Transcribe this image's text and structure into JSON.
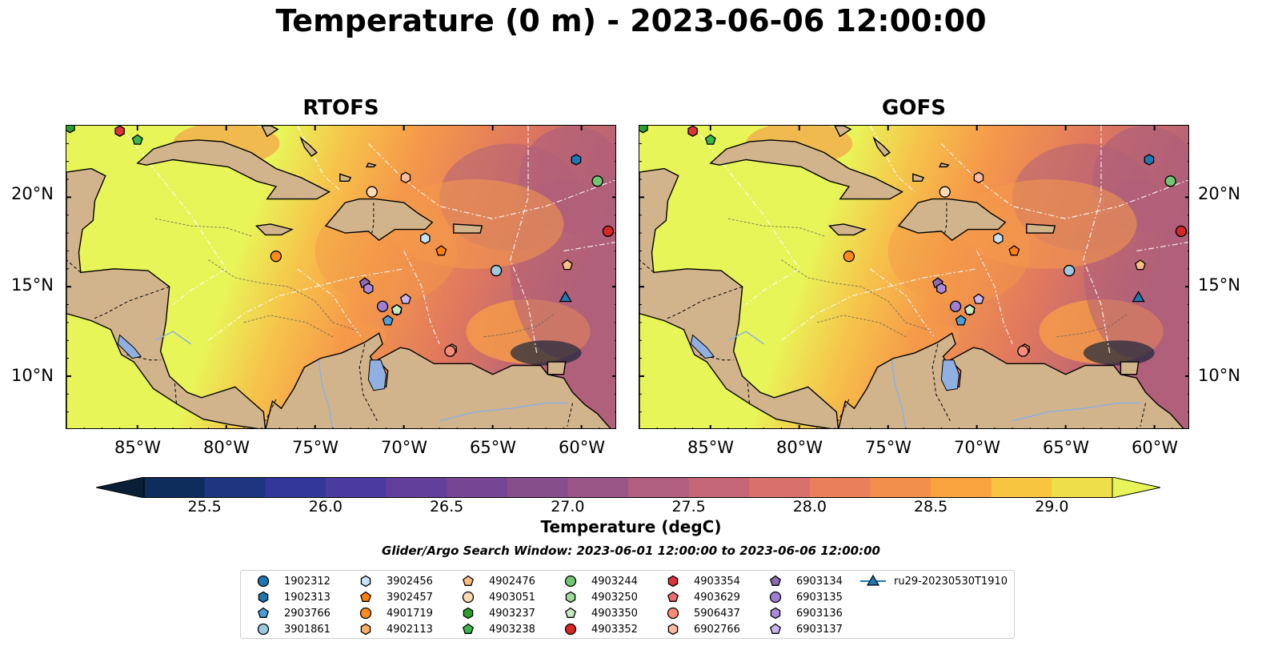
{
  "title": "Temperature (0 m) - 2023-06-06 12:00:00",
  "panels": [
    {
      "title": "RTOFS"
    },
    {
      "title": "GOFS"
    }
  ],
  "lat_labels": [
    "20°N",
    "15°N",
    "10°N"
  ],
  "lon_labels": [
    "85°W",
    "80°W",
    "75°W",
    "70°W",
    "65°W",
    "60°W"
  ],
  "map_extent": {
    "lon": [
      -89,
      -58
    ],
    "lat": [
      7,
      24
    ]
  },
  "colors": {
    "land": "#d2b48c",
    "lake": "#8fb0e0",
    "warm": "#e8f558",
    "mid": "#f59a4a",
    "cool": "#b0607a",
    "coldest": "#0a1f35"
  },
  "colorbar": {
    "label": "Temperature (degC)",
    "ticks": [
      "25.5",
      "26.0",
      "26.5",
      "27.0",
      "27.5",
      "28.0",
      "28.5",
      "29.0"
    ],
    "range": [
      25.25,
      29.25
    ],
    "colors": [
      "#0a1f35",
      "#0f2d5c",
      "#1e3580",
      "#34379a",
      "#4c3b9e",
      "#623f9a",
      "#754693",
      "#874e8c",
      "#9a5686",
      "#b05f7e",
      "#c56677",
      "#d8706c",
      "#e9805b",
      "#f38f4c",
      "#f8a33e",
      "#f7c53f",
      "#eedf48",
      "#e8f558"
    ]
  },
  "search_window": "Glider/Argo Search Window: 2023-06-01 12:00:00 to 2023-06-06 12:00:00",
  "legend": [
    {
      "label": "1902312",
      "marker": "circle",
      "color": "#1f77b4"
    },
    {
      "label": "1902313",
      "marker": "hexagon",
      "color": "#1f77b4"
    },
    {
      "label": "2903766",
      "marker": "pentagon",
      "color": "#4a9fd6"
    },
    {
      "label": "3901861",
      "marker": "circle",
      "color": "#9ecae1"
    },
    {
      "label": "3902456",
      "marker": "hexagon",
      "color": "#c6e2f5"
    },
    {
      "label": "3902457",
      "marker": "pentagon",
      "color": "#ff7f0e"
    },
    {
      "label": "4901719",
      "marker": "circle",
      "color": "#ff8c1a"
    },
    {
      "label": "4902113",
      "marker": "hexagon",
      "color": "#fdae6b"
    },
    {
      "label": "4902476",
      "marker": "pentagon",
      "color": "#fdbb84"
    },
    {
      "label": "4903051",
      "marker": "circle",
      "color": "#fdd9b5"
    },
    {
      "label": "4903237",
      "marker": "hexagon",
      "color": "#2ca02c"
    },
    {
      "label": "4903238",
      "marker": "pentagon",
      "color": "#3cb54a"
    },
    {
      "label": "4903244",
      "marker": "circle",
      "color": "#74c476"
    },
    {
      "label": "4903250",
      "marker": "hexagon",
      "color": "#a1d99b"
    },
    {
      "label": "4903350",
      "marker": "pentagon",
      "color": "#c7e9c0"
    },
    {
      "label": "4903352",
      "marker": "circle",
      "color": "#d62728"
    },
    {
      "label": "4903354",
      "marker": "hexagon",
      "color": "#e0303a"
    },
    {
      "label": "4903629",
      "marker": "pentagon",
      "color": "#ef6a6e"
    },
    {
      "label": "5906437",
      "marker": "circle",
      "color": "#fb8a7a"
    },
    {
      "label": "6902766",
      "marker": "hexagon",
      "color": "#fcbba1"
    },
    {
      "label": "6903134",
      "marker": "pentagon",
      "color": "#8c6bb1"
    },
    {
      "label": "6903135",
      "marker": "circle",
      "color": "#9e7fd1"
    },
    {
      "label": "6903136",
      "marker": "hexagon",
      "color": "#a98ad6"
    },
    {
      "label": "6903137",
      "marker": "pentagon",
      "color": "#cbb5ef"
    },
    {
      "label": "ru29-20230530T1910",
      "marker": "triangle-line",
      "color": "#1f77b4"
    }
  ],
  "floats": [
    {
      "id": "1902312",
      "lon": -64.8,
      "lat": 15.9
    },
    {
      "id": "1902313",
      "lon": -60.3,
      "lat": 22.1
    },
    {
      "id": "2903766",
      "lon": -70.9,
      "lat": 13.1
    },
    {
      "id": "3901861",
      "lon": -64.8,
      "lat": 15.9
    },
    {
      "id": "3902456",
      "lon": -68.8,
      "lat": 17.7
    },
    {
      "id": "3902457",
      "lon": -67.9,
      "lat": 17.0
    },
    {
      "id": "4901719",
      "lon": -77.2,
      "lat": 16.7
    },
    {
      "id": "4902113",
      "lon": -67.3,
      "lat": 11.5
    },
    {
      "id": "4902476",
      "lon": -60.8,
      "lat": 16.2
    },
    {
      "id": "4903051",
      "lon": -71.8,
      "lat": 20.3
    },
    {
      "id": "4903237",
      "lon": -88.8,
      "lat": 23.9
    },
    {
      "id": "4903238",
      "lon": -85.0,
      "lat": 23.2
    },
    {
      "id": "4903244",
      "lon": -59.1,
      "lat": 20.9
    },
    {
      "id": "4903250",
      "lon": -70.4,
      "lat": 13.7
    },
    {
      "id": "4903350",
      "lon": -70.4,
      "lat": 13.7
    },
    {
      "id": "4903352",
      "lon": -58.5,
      "lat": 18.1
    },
    {
      "id": "4903354",
      "lon": -86.0,
      "lat": 23.7
    },
    {
      "id": "4903629",
      "lon": -67.4,
      "lat": 11.4
    },
    {
      "id": "5906437",
      "lon": -67.4,
      "lat": 11.4
    },
    {
      "id": "6902766",
      "lon": -69.9,
      "lat": 21.1
    },
    {
      "id": "6903134",
      "lon": -72.2,
      "lat": 15.2
    },
    {
      "id": "6903135",
      "lon": -71.2,
      "lat": 13.9
    },
    {
      "id": "6903136",
      "lon": -72.0,
      "lat": 14.9
    },
    {
      "id": "6903137",
      "lon": -69.9,
      "lat": 14.3
    },
    {
      "id": "ru29-20230530T1910",
      "lon": -60.9,
      "lat": 14.4
    }
  ]
}
